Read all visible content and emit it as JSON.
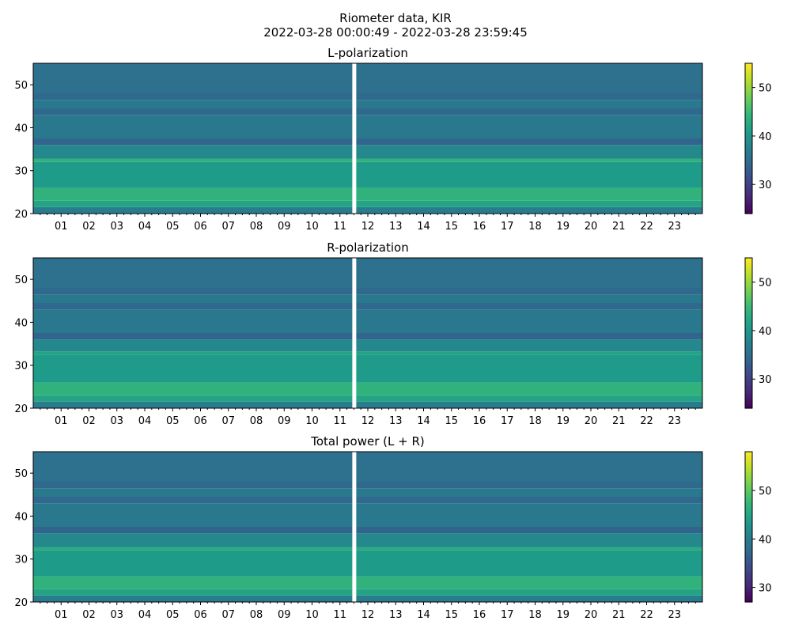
{
  "figure": {
    "title_line1": "Riometer data, KIR",
    "title_line2": "2022-03-28 00:00:49 - 2022-03-28 23:59:45"
  },
  "palette": {
    "viridis": [
      "#440154",
      "#482878",
      "#3e4989",
      "#31688e",
      "#26828e",
      "#1f9e89",
      "#35b779",
      "#6ece58",
      "#b5de2b",
      "#fde725"
    ],
    "gap": "#ffffff"
  },
  "chart_data": [
    {
      "type": "heatmap",
      "title": "L-polarization",
      "xlabel": "",
      "ylabel": "",
      "x_tick_labels": [
        "01",
        "02",
        "03",
        "04",
        "05",
        "06",
        "07",
        "08",
        "09",
        "10",
        "11",
        "12",
        "13",
        "14",
        "15",
        "16",
        "17",
        "18",
        "19",
        "20",
        "21",
        "22",
        "23"
      ],
      "x_range_hours": [
        0,
        24
      ],
      "ylim": [
        20,
        55
      ],
      "y_ticks": [
        20,
        30,
        40,
        50
      ],
      "colorbar": {
        "range": [
          24,
          55
        ],
        "ticks": [
          30,
          40,
          50
        ]
      },
      "data_gap_hour": 11.5,
      "bands": [
        {
          "y": [
            20.0,
            21.5
          ],
          "value": 37
        },
        {
          "y": [
            21.5,
            23.0
          ],
          "value": 42
        },
        {
          "y": [
            23.0,
            26.0
          ],
          "value": 44
        },
        {
          "y": [
            26.0,
            32.0
          ],
          "value": 41
        },
        {
          "y": [
            32.0,
            32.8
          ],
          "value": 44
        },
        {
          "y": [
            32.8,
            36.0
          ],
          "value": 38.5
        },
        {
          "y": [
            36.0,
            37.5
          ],
          "value": 34
        },
        {
          "y": [
            37.5,
            43.0
          ],
          "value": 36.5
        },
        {
          "y": [
            43.0,
            44.5
          ],
          "value": 34.5
        },
        {
          "y": [
            44.5,
            46.5
          ],
          "value": 36.5
        },
        {
          "y": [
            46.5,
            48.0
          ],
          "value": 34.5
        },
        {
          "y": [
            48.0,
            55.0
          ],
          "value": 35.5
        }
      ]
    },
    {
      "type": "heatmap",
      "title": "R-polarization",
      "xlabel": "",
      "ylabel": "",
      "x_tick_labels": [
        "01",
        "02",
        "03",
        "04",
        "05",
        "06",
        "07",
        "08",
        "09",
        "10",
        "11",
        "12",
        "13",
        "14",
        "15",
        "16",
        "17",
        "18",
        "19",
        "20",
        "21",
        "22",
        "23"
      ],
      "x_range_hours": [
        0,
        24
      ],
      "ylim": [
        20,
        55
      ],
      "y_ticks": [
        20,
        30,
        40,
        50
      ],
      "colorbar": {
        "range": [
          24,
          55
        ],
        "ticks": [
          30,
          40,
          50
        ]
      },
      "data_gap_hour": 11.5,
      "bands": [
        {
          "y": [
            20.0,
            21.5
          ],
          "value": 37
        },
        {
          "y": [
            21.5,
            23.0
          ],
          "value": 42
        },
        {
          "y": [
            23.0,
            26.0
          ],
          "value": 44
        },
        {
          "y": [
            26.0,
            32.5
          ],
          "value": 41
        },
        {
          "y": [
            32.5,
            33.2
          ],
          "value": 42
        },
        {
          "y": [
            33.2,
            36.0
          ],
          "value": 38.5
        },
        {
          "y": [
            36.0,
            37.5
          ],
          "value": 34
        },
        {
          "y": [
            37.5,
            43.0
          ],
          "value": 36.5
        },
        {
          "y": [
            43.0,
            44.5
          ],
          "value": 34.5
        },
        {
          "y": [
            44.5,
            46.5
          ],
          "value": 36.5
        },
        {
          "y": [
            46.5,
            48.0
          ],
          "value": 34.5
        },
        {
          "y": [
            48.0,
            55.0
          ],
          "value": 35.5
        }
      ]
    },
    {
      "type": "heatmap",
      "title": "Total power (L + R)",
      "xlabel": "",
      "ylabel": "",
      "x_tick_labels": [
        "01",
        "02",
        "03",
        "04",
        "05",
        "06",
        "07",
        "08",
        "09",
        "10",
        "11",
        "12",
        "13",
        "14",
        "15",
        "16",
        "17",
        "18",
        "19",
        "20",
        "21",
        "22",
        "23"
      ],
      "x_range_hours": [
        0,
        24
      ],
      "ylim": [
        20,
        55
      ],
      "y_ticks": [
        20,
        30,
        40,
        50
      ],
      "colorbar": {
        "range": [
          27,
          58
        ],
        "ticks": [
          30,
          40,
          50
        ]
      },
      "data_gap_hour": 11.5,
      "bands": [
        {
          "y": [
            20.0,
            21.5
          ],
          "value": 40
        },
        {
          "y": [
            21.5,
            23.0
          ],
          "value": 45
        },
        {
          "y": [
            23.0,
            26.0
          ],
          "value": 47
        },
        {
          "y": [
            26.0,
            32.0
          ],
          "value": 44
        },
        {
          "y": [
            32.0,
            32.8
          ],
          "value": 46
        },
        {
          "y": [
            32.8,
            36.0
          ],
          "value": 41.5
        },
        {
          "y": [
            36.0,
            37.5
          ],
          "value": 37
        },
        {
          "y": [
            37.5,
            43.0
          ],
          "value": 39.5
        },
        {
          "y": [
            43.0,
            44.5
          ],
          "value": 37.5
        },
        {
          "y": [
            44.5,
            46.5
          ],
          "value": 39.5
        },
        {
          "y": [
            46.5,
            48.0
          ],
          "value": 37.5
        },
        {
          "y": [
            48.0,
            55.0
          ],
          "value": 38.5
        }
      ]
    }
  ]
}
